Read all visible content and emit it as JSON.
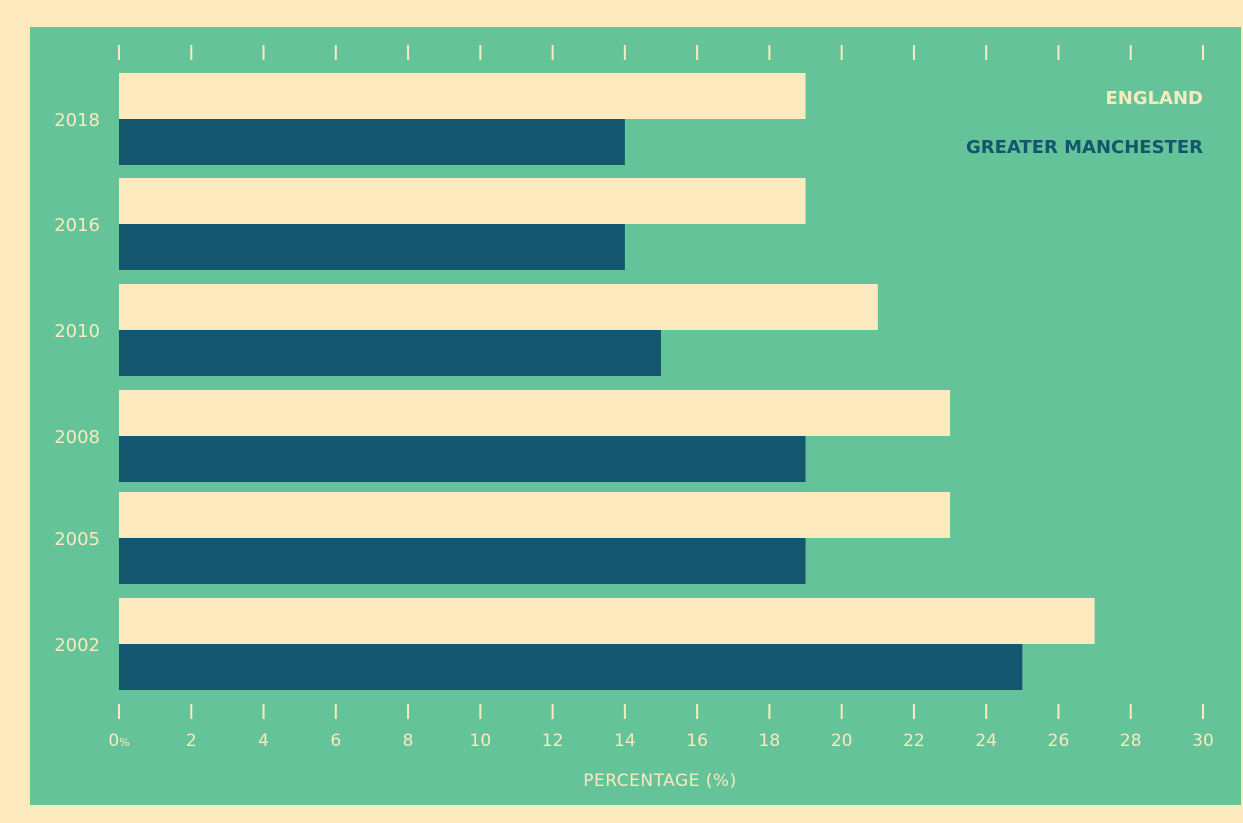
{
  "chart_data": {
    "type": "bar",
    "orientation": "horizontal",
    "categories": [
      "2018",
      "2016",
      "2010",
      "2008",
      "2005",
      "2002"
    ],
    "series": [
      {
        "name": "ENGLAND",
        "values": [
          19,
          19,
          21,
          23,
          23,
          27
        ]
      },
      {
        "name": "GREATER MANCHESTER",
        "values": [
          14,
          14,
          15,
          19,
          19,
          25
        ]
      }
    ],
    "xlabel": "PERCENTAGE (%)",
    "xlim": [
      0,
      30
    ],
    "ticks": [
      0,
      2,
      4,
      6,
      8,
      10,
      12,
      14,
      16,
      18,
      20,
      22,
      24,
      26,
      28,
      30
    ],
    "zero_suffix": "%",
    "legend_position": "top-right",
    "grid": false
  },
  "colors": {
    "background": "#fce9bd",
    "panel": "#64c399",
    "england": "#fce9bd",
    "greater_manchester": "#14566d",
    "text": "#fce9bd"
  }
}
